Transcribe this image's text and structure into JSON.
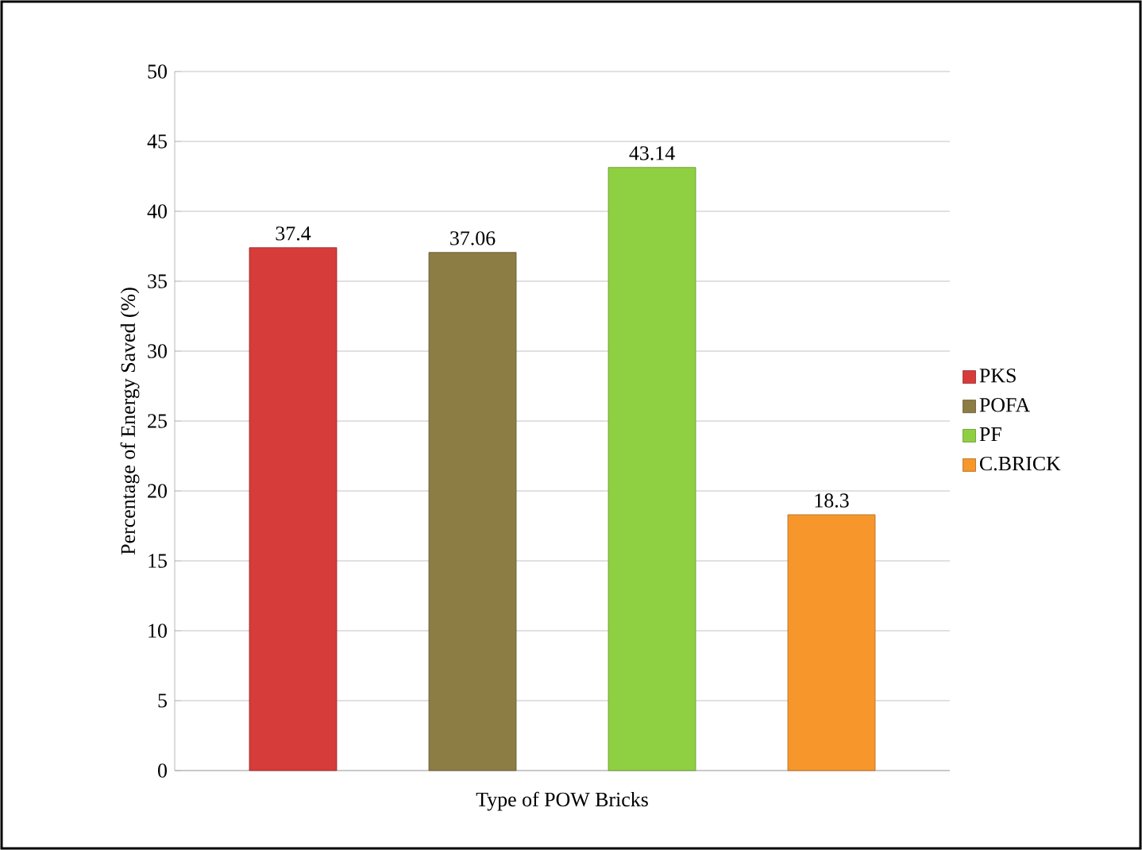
{
  "chart_data": {
    "type": "bar",
    "xlabel": "Type of POW Bricks",
    "ylabel": "Percentage of Energy Saved (%)",
    "categories": [
      null
    ],
    "series": [
      {
        "name": "PKS",
        "color": "#d63c3a",
        "values": [
          37.4
        ]
      },
      {
        "name": "POFA",
        "color": "#8c7d45",
        "values": [
          37.06
        ]
      },
      {
        "name": "PF",
        "color": "#8fd043",
        "values": [
          43.14
        ]
      },
      {
        "name": "C.BRICK",
        "color": "#f7962b",
        "values": [
          18.3
        ]
      }
    ],
    "ylim": [
      0,
      50
    ],
    "yticks": [
      0,
      5,
      10,
      15,
      20,
      25,
      30,
      35,
      40,
      45,
      50
    ],
    "grid": "y",
    "legend": "right",
    "data_labels": true
  }
}
